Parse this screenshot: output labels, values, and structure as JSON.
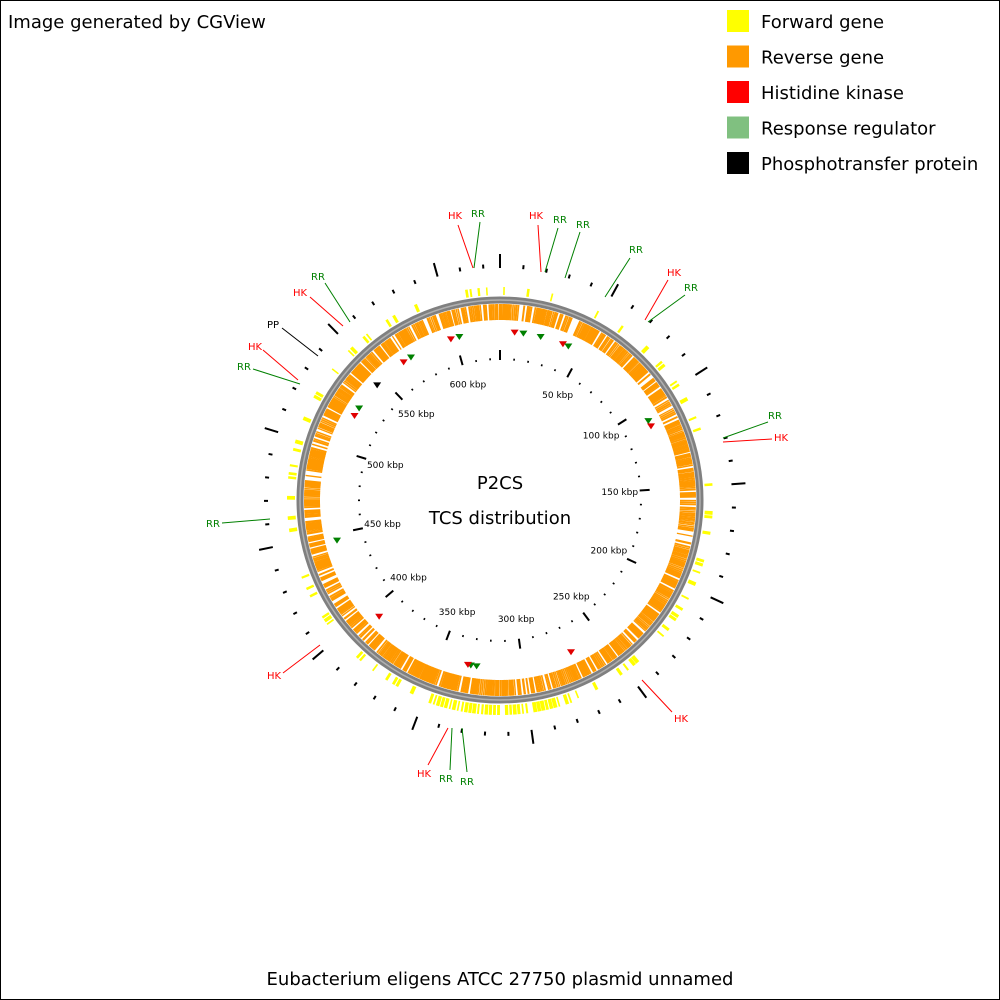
{
  "header": {
    "title": "Image generated by CGView"
  },
  "legend": [
    {
      "label": "Forward gene",
      "color": "#ffff00"
    },
    {
      "label": "Reverse gene",
      "color": "#ff9900"
    },
    {
      "label": "Histidine kinase",
      "color": "#ff0000"
    },
    {
      "label": "Response regulator",
      "color": "#80c080"
    },
    {
      "label": "Phosphotransfer protein",
      "color": "#000000"
    }
  ],
  "center": {
    "title": "P2CS",
    "subtitle": "TCS distribution"
  },
  "scale_labels": [
    "50 kbp",
    "100 kbp",
    "150 kbp",
    "200 kbp",
    "250 kbp",
    "300 kbp",
    "350 kbp",
    "400 kbp",
    "450 kbp",
    "500 kbp",
    "550 kbp",
    "600 kbp"
  ],
  "features": [
    {
      "label": "HK",
      "color": "#ff0000"
    },
    {
      "label": "RR",
      "color": "#008000"
    },
    {
      "label": "HK",
      "color": "#ff0000"
    },
    {
      "label": "RR",
      "color": "#008000"
    },
    {
      "label": "RR",
      "color": "#008000"
    },
    {
      "label": "RR",
      "color": "#008000"
    },
    {
      "label": "HK",
      "color": "#ff0000"
    },
    {
      "label": "RR",
      "color": "#008000"
    },
    {
      "label": "RR",
      "color": "#008000"
    },
    {
      "label": "HK",
      "color": "#ff0000"
    },
    {
      "label": "HK",
      "color": "#ff0000"
    },
    {
      "label": "HK",
      "color": "#ff0000"
    },
    {
      "label": "RR",
      "color": "#008000"
    },
    {
      "label": "RR",
      "color": "#008000"
    },
    {
      "label": "HK",
      "color": "#ff0000"
    },
    {
      "label": "RR",
      "color": "#008000"
    },
    {
      "label": "RR",
      "color": "#008000"
    },
    {
      "label": "HK",
      "color": "#ff0000"
    },
    {
      "label": "PP",
      "color": "#000000"
    },
    {
      "label": "HK",
      "color": "#ff0000"
    },
    {
      "label": "RR",
      "color": "#008000"
    }
  ],
  "footer": {
    "caption": "Eubacterium eligens ATCC 27750 plasmid unnamed"
  }
}
